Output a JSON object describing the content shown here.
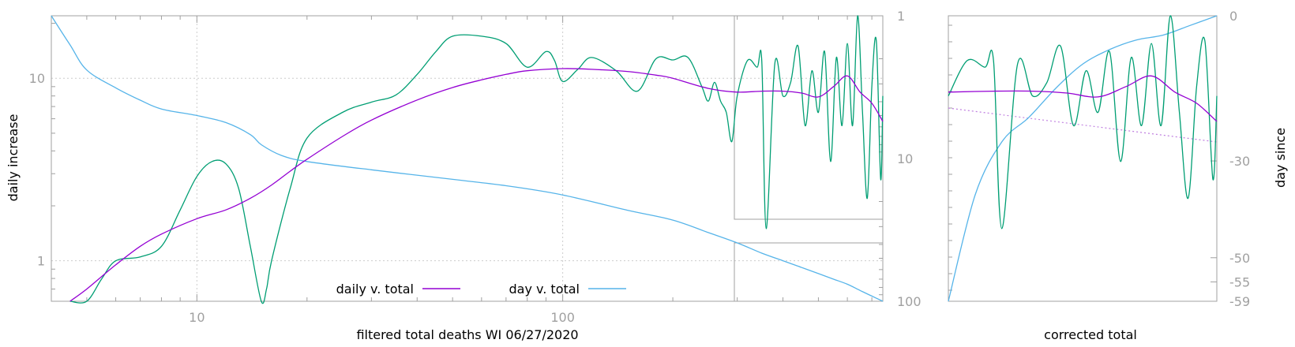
{
  "colors": {
    "axis": "#a0a0a0",
    "grid": "#cccccc",
    "daily_v_total": "#9400d3",
    "day_v_total": "#56b4e9",
    "daily_raw": "#009e73",
    "trend_dotted": "#c080e0"
  },
  "chart_data": [
    {
      "type": "line",
      "xlabel": "filtered total deaths WI 06/27/2020",
      "ylabel": "daily increase",
      "y2label": "",
      "x_scale": "log",
      "y_scale": "log",
      "y2_scale": "log-reversed",
      "xlim": [
        4,
        750
      ],
      "ylim": [
        0.6,
        22
      ],
      "y2lim": [
        1,
        100
      ],
      "x_ticks": [
        10,
        100
      ],
      "y_ticks": [
        1,
        10
      ],
      "y2_ticks": [
        1,
        10,
        100
      ],
      "grid": true,
      "legend_position": "bottom-center",
      "series": [
        {
          "name": "daily v. total",
          "axis": "y",
          "x": [
            4.5,
            5,
            6,
            7,
            8,
            10,
            12,
            14,
            16,
            18,
            20,
            25,
            30,
            40,
            50,
            60,
            70,
            80,
            100,
            120,
            150,
            180,
            200,
            250,
            300,
            350,
            400,
            450,
            500,
            550,
            600,
            650,
            700,
            750
          ],
          "y": [
            0.6,
            0.7,
            0.95,
            1.2,
            1.4,
            1.7,
            1.9,
            2.2,
            2.6,
            3.1,
            3.6,
            4.8,
            5.9,
            7.6,
            8.9,
            9.8,
            10.5,
            11.0,
            11.3,
            11.2,
            10.9,
            10.4,
            10.0,
            8.8,
            8.4,
            8.5,
            8.5,
            8.3,
            7.9,
            9.0,
            10.3,
            8.4,
            7.3,
            5.8
          ]
        },
        {
          "name": "day v. total",
          "axis": "y2",
          "x": [
            4,
            4.5,
            5,
            6,
            7,
            8,
            10,
            12,
            14,
            15,
            17,
            20,
            30,
            50,
            70,
            100,
            150,
            200,
            250,
            300,
            350,
            400,
            450,
            500,
            550,
            600,
            650,
            700,
            750
          ],
          "y": [
            1,
            1.6,
            2.4,
            3.2,
            3.9,
            4.5,
            5.0,
            5.6,
            6.8,
            8.0,
            9.5,
            10.5,
            12.0,
            14.0,
            15.5,
            18.0,
            23.0,
            27.0,
            33.0,
            39.0,
            46.0,
            52.0,
            58.0,
            64.0,
            70.0,
            76.0,
            84.0,
            92.0,
            100.0
          ]
        },
        {
          "name": "",
          "axis": "y",
          "x": [
            4.5,
            5,
            5.5,
            6,
            7,
            8,
            9,
            10,
            11,
            12,
            13,
            14,
            15,
            15.5,
            16,
            18,
            20,
            25,
            30,
            35,
            40,
            45,
            50,
            60,
            70,
            80,
            90,
            95,
            100,
            110,
            120,
            140,
            160,
            180,
            200,
            220,
            240,
            250,
            260,
            270,
            280,
            290,
            300,
            320,
            340,
            350,
            360,
            380,
            400,
            420,
            440,
            460,
            480,
            500,
            520,
            540,
            560,
            580,
            600,
            620,
            640,
            660,
            680,
            700,
            720,
            740,
            750
          ],
          "y": [
            0.6,
            0.6,
            0.8,
            1.0,
            1.05,
            1.2,
            1.9,
            2.9,
            3.5,
            3.4,
            2.5,
            1.2,
            0.6,
            0.7,
            1.0,
            2.5,
            4.7,
            6.5,
            7.4,
            8.1,
            10.5,
            14.0,
            17.0,
            17.0,
            15.5,
            11.5,
            14.0,
            12.5,
            9.6,
            11.2,
            13.0,
            11.0,
            8.5,
            12.8,
            12.6,
            13.0,
            9.0,
            7.5,
            9.5,
            7.5,
            6.5,
            4.5,
            8.0,
            12.5,
            11.5,
            12.5,
            1.5,
            12.0,
            8.0,
            9.5,
            15.0,
            5.5,
            11.0,
            6.5,
            14.0,
            3.5,
            13.0,
            5.5,
            15.5,
            5.5,
            22.0,
            6.5,
            2.2,
            9.0,
            16.0,
            2.8,
            8.0
          ]
        }
      ]
    },
    {
      "type": "line",
      "xlabel": "corrected total",
      "ylabel": "",
      "y2label": "day since",
      "xlim": [
        0,
        100
      ],
      "ylim": [
        -59,
        0
      ],
      "y2_ticks": [
        0,
        -30,
        -50,
        -55,
        -59
      ],
      "tick_labels_right": [
        "0",
        "-30",
        "-50",
        "-55",
        "-59"
      ],
      "legend_position": "none",
      "series": [
        {
          "name": "",
          "x": [
            0,
            10,
            20,
            30,
            40,
            50,
            60,
            70,
            80,
            90,
            100
          ],
          "y": [
            -59,
            -37,
            -26,
            -21,
            -15,
            -10,
            -7,
            -5,
            -4,
            -2,
            0
          ]
        }
      ]
    }
  ]
}
